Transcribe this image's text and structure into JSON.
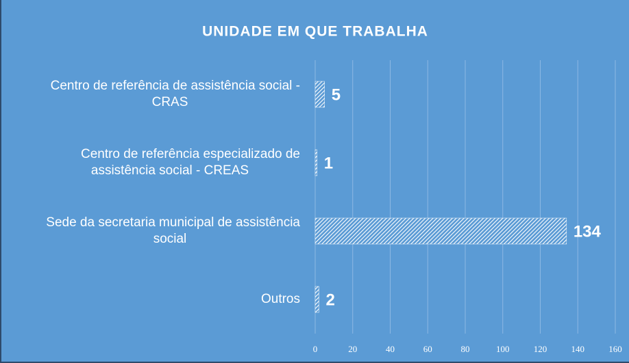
{
  "chart_data": {
    "type": "hbar",
    "title": "UNIDADE EM QUE TRABALHA",
    "categories": [
      [
        "Centro de referência de assistência social -",
        "CRAS"
      ],
      [
        "Centro de referência especializado de",
        "assistência social - CREAS"
      ],
      [
        "Sede da secretaria municipal de assistência",
        "social"
      ],
      [
        "Outros"
      ]
    ],
    "values": [
      5,
      1,
      134,
      2
    ],
    "color": "#ffffff",
    "xlim": [
      0,
      160
    ],
    "xticks": [
      0,
      20,
      40,
      60,
      80,
      100,
      120,
      140,
      160
    ],
    "grid": true
  }
}
